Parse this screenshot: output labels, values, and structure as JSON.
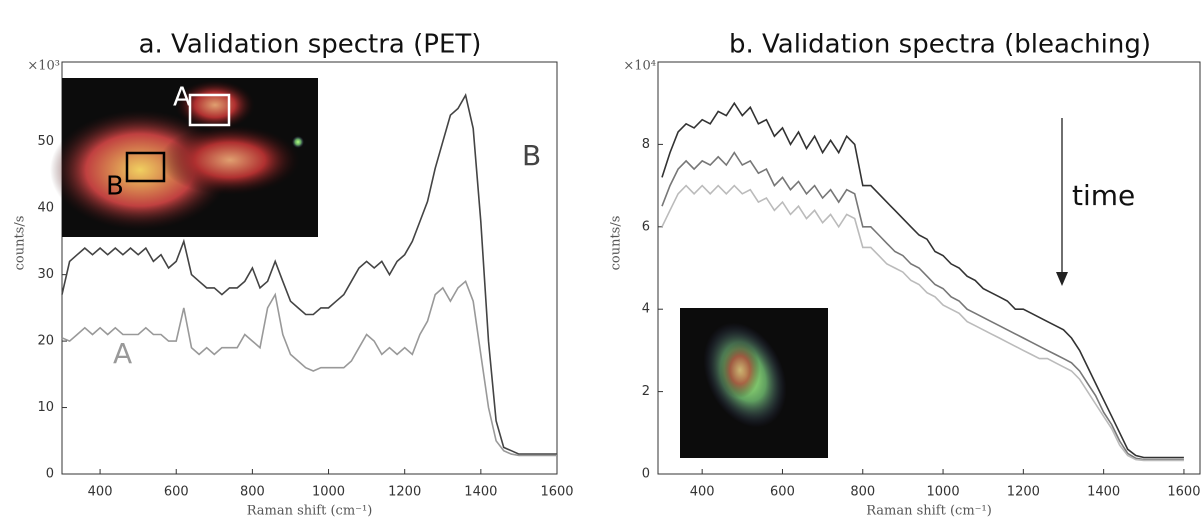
{
  "chart_data": [
    {
      "type": "line",
      "title": "a. Validation spectra (PET)",
      "x_label": "Raman shift (cm⁻¹)",
      "y_label": "counts/s",
      "y_exponent": "×10³",
      "xlim": [
        300,
        1600
      ],
      "xticks": [
        400,
        600,
        800,
        1000,
        1200,
        1400,
        1600
      ],
      "ylim": [
        0,
        62
      ],
      "yticks": [
        0,
        10,
        20,
        30,
        40,
        50
      ],
      "inset_labels": [
        "A",
        "B"
      ],
      "x": [
        300,
        320,
        340,
        360,
        380,
        400,
        420,
        440,
        460,
        480,
        500,
        520,
        540,
        560,
        580,
        600,
        620,
        640,
        660,
        680,
        700,
        720,
        740,
        760,
        780,
        800,
        820,
        840,
        860,
        880,
        900,
        920,
        940,
        960,
        980,
        1000,
        1020,
        1040,
        1060,
        1080,
        1100,
        1120,
        1140,
        1160,
        1180,
        1200,
        1220,
        1240,
        1260,
        1280,
        1300,
        1320,
        1340,
        1360,
        1380,
        1400,
        1420,
        1440,
        1460,
        1480,
        1500,
        1520,
        1540,
        1560,
        1580,
        1600
      ],
      "series": [
        {
          "name": "B",
          "color": "#444444",
          "values": [
            27,
            32,
            33,
            34,
            33,
            34,
            33,
            34,
            33,
            34,
            33,
            34,
            32,
            33,
            31,
            32,
            35,
            30,
            29,
            28,
            28,
            27,
            28,
            28,
            29,
            31,
            28,
            29,
            32,
            29,
            26,
            25,
            24,
            24,
            25,
            25,
            26,
            27,
            29,
            31,
            32,
            31,
            32,
            30,
            32,
            33,
            35,
            38,
            41,
            46,
            50,
            54,
            55,
            57,
            52,
            38,
            20,
            8,
            4,
            3.5,
            3,
            3,
            3,
            3,
            3,
            3
          ]
        },
        {
          "name": "A",
          "color": "#999999",
          "values": [
            20.5,
            20,
            21,
            22,
            21,
            22,
            21,
            22,
            21,
            21,
            21,
            22,
            21,
            21,
            20,
            20,
            25,
            19,
            18,
            19,
            18,
            19,
            19,
            19,
            21,
            20,
            19,
            25,
            27,
            21,
            18,
            17,
            16,
            15.5,
            16,
            16,
            16,
            16,
            17,
            19,
            21,
            20,
            18,
            19,
            18,
            19,
            18,
            21,
            23,
            27,
            28,
            26,
            28,
            29,
            26,
            18,
            10,
            5,
            3.5,
            3,
            2.8,
            2.8,
            2.8,
            2.8,
            2.8,
            2.8
          ]
        }
      ]
    },
    {
      "type": "line",
      "title": "b. Validation spectra (bleaching)",
      "x_label": "Raman shift (cm⁻¹)",
      "y_label": "counts/s",
      "y_exponent": "×10⁴",
      "xlim": [
        290,
        1640
      ],
      "xticks": [
        400,
        600,
        800,
        1000,
        1200,
        1400,
        1600
      ],
      "ylim": [
        0,
        10
      ],
      "yticks": [
        0,
        2,
        4,
        6,
        8
      ],
      "annotation": "time",
      "x": [
        300,
        320,
        340,
        360,
        380,
        400,
        420,
        440,
        460,
        480,
        500,
        520,
        540,
        560,
        580,
        600,
        620,
        640,
        660,
        680,
        700,
        720,
        740,
        760,
        780,
        800,
        820,
        840,
        860,
        880,
        900,
        920,
        940,
        960,
        980,
        1000,
        1020,
        1040,
        1060,
        1080,
        1100,
        1120,
        1140,
        1160,
        1180,
        1200,
        1220,
        1240,
        1260,
        1280,
        1300,
        1320,
        1340,
        1360,
        1380,
        1400,
        1420,
        1440,
        1460,
        1480,
        1500,
        1520,
        1540,
        1560,
        1580,
        1600
      ],
      "series": [
        {
          "color": "#333333",
          "values": [
            7.2,
            7.8,
            8.3,
            8.5,
            8.4,
            8.6,
            8.5,
            8.8,
            8.7,
            9.0,
            8.7,
            8.9,
            8.5,
            8.6,
            8.2,
            8.4,
            8.0,
            8.3,
            7.9,
            8.2,
            7.8,
            8.1,
            7.8,
            8.2,
            8.0,
            7.0,
            7.0,
            6.8,
            6.6,
            6.4,
            6.2,
            6.0,
            5.8,
            5.7,
            5.4,
            5.3,
            5.1,
            5.0,
            4.8,
            4.7,
            4.5,
            4.4,
            4.3,
            4.2,
            4.0,
            4.0,
            3.9,
            3.8,
            3.7,
            3.6,
            3.5,
            3.3,
            3.0,
            2.6,
            2.2,
            1.8,
            1.4,
            1.0,
            0.6,
            0.45,
            0.4,
            0.4,
            0.4,
            0.4,
            0.4,
            0.4
          ]
        },
        {
          "color": "#777777",
          "values": [
            6.5,
            7.0,
            7.4,
            7.6,
            7.4,
            7.6,
            7.5,
            7.7,
            7.5,
            7.8,
            7.5,
            7.6,
            7.3,
            7.4,
            7.0,
            7.2,
            6.9,
            7.1,
            6.8,
            7.0,
            6.7,
            6.9,
            6.6,
            6.9,
            6.8,
            6.0,
            6.0,
            5.8,
            5.6,
            5.4,
            5.3,
            5.1,
            5.0,
            4.8,
            4.6,
            4.5,
            4.3,
            4.2,
            4.0,
            3.9,
            3.8,
            3.7,
            3.6,
            3.5,
            3.4,
            3.3,
            3.2,
            3.1,
            3.0,
            2.9,
            2.8,
            2.7,
            2.5,
            2.2,
            1.9,
            1.5,
            1.2,
            0.8,
            0.5,
            0.38,
            0.35,
            0.35,
            0.35,
            0.35,
            0.35,
            0.35
          ]
        },
        {
          "color": "#bbbbbb",
          "values": [
            6.0,
            6.4,
            6.8,
            7.0,
            6.8,
            7.0,
            6.8,
            7.0,
            6.8,
            7.0,
            6.8,
            6.9,
            6.6,
            6.7,
            6.4,
            6.6,
            6.3,
            6.5,
            6.2,
            6.4,
            6.1,
            6.3,
            6.0,
            6.3,
            6.2,
            5.5,
            5.5,
            5.3,
            5.1,
            5.0,
            4.9,
            4.7,
            4.6,
            4.4,
            4.3,
            4.1,
            4.0,
            3.9,
            3.7,
            3.6,
            3.5,
            3.4,
            3.3,
            3.2,
            3.1,
            3.0,
            2.9,
            2.8,
            2.8,
            2.7,
            2.6,
            2.5,
            2.3,
            2.0,
            1.7,
            1.4,
            1.1,
            0.7,
            0.45,
            0.35,
            0.33,
            0.33,
            0.33,
            0.33,
            0.33,
            0.33
          ]
        }
      ]
    }
  ]
}
